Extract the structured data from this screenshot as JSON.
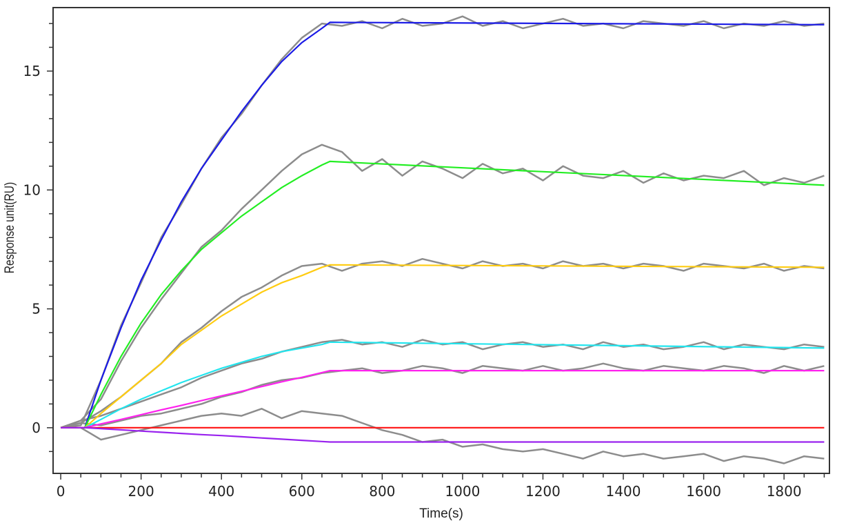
{
  "chart_data": {
    "type": "line",
    "title": "",
    "xlabel": "Time(s)",
    "ylabel": "Response unit(RU)",
    "xlim": [
      -19,
      1913
    ],
    "ylim": [
      -1.92,
      17.67
    ],
    "x_ticks": [
      0,
      200,
      400,
      600,
      800,
      1000,
      1200,
      1400,
      1600,
      1800
    ],
    "x_minor_step": 50,
    "y_ticks": [
      0,
      5,
      10,
      15
    ],
    "y_minor_step": 1,
    "grid": false,
    "legend": "none",
    "fit_x": [
      0,
      60,
      100,
      150,
      200,
      250,
      300,
      350,
      400,
      450,
      500,
      550,
      600,
      650,
      670,
      1900
    ],
    "fits": [
      {
        "color": "#1a1ae6",
        "values": [
          0,
          0,
          2.0,
          4.2,
          6.2,
          7.9,
          9.5,
          10.9,
          12.1,
          13.3,
          14.4,
          15.4,
          16.2,
          16.8,
          17.05,
          16.95
        ]
      },
      {
        "color": "#22ee22",
        "values": [
          0,
          0,
          1.4,
          3.0,
          4.4,
          5.6,
          6.6,
          7.5,
          8.2,
          8.9,
          9.5,
          10.1,
          10.6,
          11.05,
          11.2,
          10.2
        ]
      },
      {
        "color": "#ffcc11",
        "values": [
          0,
          0,
          0.6,
          1.3,
          2.0,
          2.7,
          3.5,
          4.1,
          4.7,
          5.2,
          5.7,
          6.1,
          6.4,
          6.75,
          6.85,
          6.75
        ]
      },
      {
        "color": "#22e5ee",
        "values": [
          0,
          0,
          0.35,
          0.8,
          1.2,
          1.55,
          1.9,
          2.2,
          2.5,
          2.75,
          3.0,
          3.2,
          3.35,
          3.5,
          3.6,
          3.35
        ]
      },
      {
        "color": "#ff22ee",
        "values": [
          0,
          0,
          0.16,
          0.35,
          0.55,
          0.75,
          0.94,
          1.14,
          1.34,
          1.53,
          1.73,
          1.93,
          2.12,
          2.32,
          2.4,
          2.4
        ]
      },
      {
        "color": "#ff1111",
        "values": [
          0,
          0,
          0,
          0,
          0,
          0,
          0,
          0,
          0,
          0,
          0,
          0,
          0,
          0,
          0,
          0
        ]
      },
      {
        "color": "#9922ee",
        "values": [
          0,
          0,
          -0.04,
          -0.09,
          -0.14,
          -0.19,
          -0.24,
          -0.29,
          -0.33,
          -0.38,
          -0.43,
          -0.48,
          -0.53,
          -0.58,
          -0.6,
          -0.6
        ]
      }
    ],
    "trace_color": "#8c8c8c",
    "trace_x": [
      0,
      50,
      100,
      150,
      200,
      250,
      300,
      350,
      400,
      450,
      500,
      550,
      600,
      650,
      700,
      750,
      800,
      850,
      900,
      950,
      1000,
      1050,
      1100,
      1150,
      1200,
      1250,
      1300,
      1350,
      1400,
      1450,
      1500,
      1550,
      1600,
      1650,
      1700,
      1750,
      1800,
      1850,
      1900
    ],
    "traces": [
      [
        0,
        0.1,
        2.0,
        4.3,
        6.1,
        8.0,
        9.4,
        10.9,
        12.2,
        13.2,
        14.4,
        15.5,
        16.4,
        17.0,
        16.9,
        17.1,
        16.8,
        17.2,
        16.9,
        17.0,
        17.3,
        16.9,
        17.1,
        16.8,
        17.0,
        17.2,
        16.9,
        17.0,
        16.8,
        17.1,
        17.0,
        16.9,
        17.1,
        16.8,
        17.0,
        16.9,
        17.1,
        16.9,
        17.0
      ],
      [
        0,
        0.3,
        1.2,
        2.8,
        4.2,
        5.4,
        6.5,
        7.6,
        8.3,
        9.2,
        10.0,
        10.8,
        11.5,
        11.9,
        11.6,
        10.8,
        11.3,
        10.6,
        11.2,
        10.9,
        10.5,
        11.1,
        10.7,
        10.9,
        10.4,
        11.0,
        10.6,
        10.5,
        10.8,
        10.3,
        10.7,
        10.4,
        10.6,
        10.5,
        10.8,
        10.2,
        10.5,
        10.3,
        10.6
      ],
      [
        0,
        0.2,
        0.7,
        1.3,
        2.0,
        2.7,
        3.6,
        4.2,
        4.9,
        5.5,
        5.9,
        6.4,
        6.8,
        6.9,
        6.6,
        6.9,
        7.0,
        6.8,
        7.1,
        6.9,
        6.7,
        7.0,
        6.8,
        6.9,
        6.7,
        7.0,
        6.8,
        6.9,
        6.7,
        6.9,
        6.8,
        6.6,
        6.9,
        6.8,
        6.7,
        6.9,
        6.6,
        6.8,
        6.7
      ],
      [
        0,
        0.3,
        0.5,
        0.8,
        1.1,
        1.4,
        1.7,
        2.1,
        2.4,
        2.7,
        2.9,
        3.2,
        3.4,
        3.6,
        3.7,
        3.5,
        3.6,
        3.4,
        3.7,
        3.5,
        3.6,
        3.3,
        3.5,
        3.6,
        3.4,
        3.5,
        3.3,
        3.6,
        3.4,
        3.5,
        3.3,
        3.4,
        3.6,
        3.3,
        3.5,
        3.4,
        3.3,
        3.5,
        3.4
      ],
      [
        0,
        0.2,
        0.1,
        0.3,
        0.5,
        0.6,
        0.8,
        1.0,
        1.3,
        1.5,
        1.8,
        2.0,
        2.1,
        2.3,
        2.4,
        2.5,
        2.3,
        2.4,
        2.6,
        2.5,
        2.3,
        2.6,
        2.5,
        2.4,
        2.6,
        2.4,
        2.5,
        2.7,
        2.5,
        2.4,
        2.6,
        2.5,
        2.4,
        2.6,
        2.5,
        2.3,
        2.6,
        2.4,
        2.6
      ],
      [
        0,
        0,
        -0.5,
        -0.3,
        -0.1,
        0.1,
        0.3,
        0.5,
        0.6,
        0.5,
        0.8,
        0.4,
        0.7,
        0.6,
        0.5,
        0.2,
        -0.1,
        -0.3,
        -0.6,
        -0.5,
        -0.8,
        -0.7,
        -0.9,
        -1.0,
        -0.9,
        -1.1,
        -1.3,
        -1.0,
        -1.2,
        -1.1,
        -1.3,
        -1.2,
        -1.1,
        -1.4,
        -1.2,
        -1.3,
        -1.5,
        -1.2,
        -1.3
      ]
    ]
  }
}
